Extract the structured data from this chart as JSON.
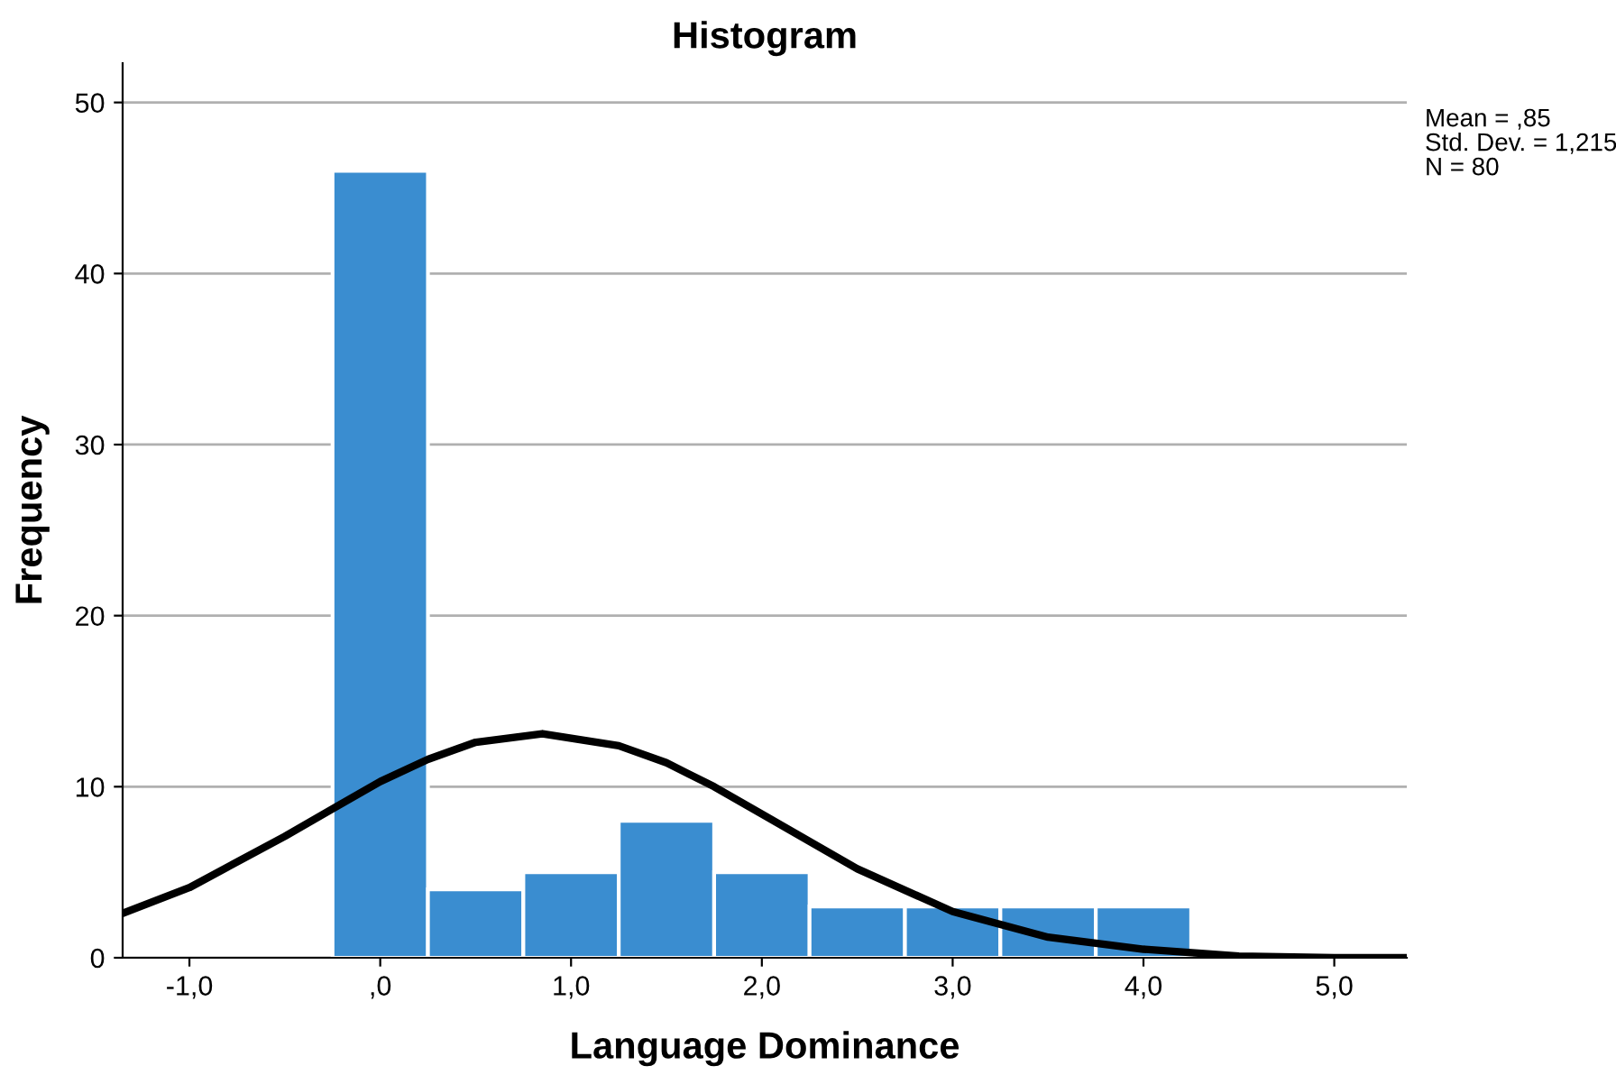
{
  "chart_data": {
    "type": "histogram",
    "title": "Histogram",
    "xlabel": "Language Dominance",
    "ylabel": "Frequency",
    "bins": [
      -0.25,
      0.25,
      0.75,
      1.25,
      1.75,
      2.25,
      2.75,
      3.25,
      3.75,
      4.25
    ],
    "values": [
      46,
      4,
      5,
      8,
      5,
      3,
      3,
      3,
      3
    ],
    "color": "#3a8dd0",
    "series": [
      {
        "type": "line",
        "color": "#000000",
        "x": [
          -1.35,
          -1.0,
          -0.5,
          -0.25,
          0.0,
          0.25,
          0.5,
          0.85,
          1.25,
          1.5,
          1.75,
          2.0,
          2.5,
          3.0,
          3.5,
          4.0,
          4.5,
          5.0,
          5.38
        ],
        "values": [
          2.6,
          4.1,
          7.1,
          8.7,
          10.3,
          11.6,
          12.6,
          13.1,
          12.4,
          11.4,
          10.0,
          8.4,
          5.2,
          2.7,
          1.2,
          0.5,
          0.1,
          0.0,
          0.0
        ]
      }
    ],
    "xlim": [
      -1.35,
      5.38
    ],
    "ylim": [
      0,
      52.3
    ],
    "xticks": [
      {
        "value": -1,
        "label": "-1,0"
      },
      {
        "value": 0,
        "label": ",0"
      },
      {
        "value": 1,
        "label": "1,0"
      },
      {
        "value": 2,
        "label": "2,0"
      },
      {
        "value": 3,
        "label": "3,0"
      },
      {
        "value": 4,
        "label": "4,0"
      },
      {
        "value": 5,
        "label": "5,0"
      }
    ],
    "yticks": [
      0,
      10,
      20,
      30,
      40,
      50
    ],
    "grid": "y",
    "annotations": [
      "Mean = ,85",
      "Std. Dev. = 1,215",
      "N = 80"
    ]
  }
}
